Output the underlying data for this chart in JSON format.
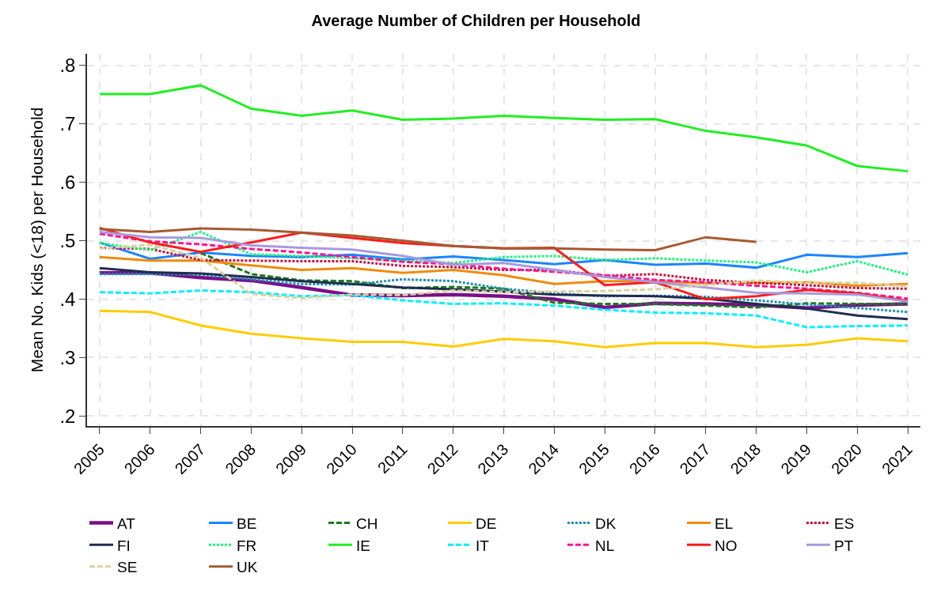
{
  "chart_data": {
    "type": "line",
    "title": "Average Number of Children per Household",
    "ylabel": "Mean No. Kids (<18) per Household",
    "x": [
      2005,
      2006,
      2007,
      2008,
      2009,
      2010,
      2011,
      2012,
      2013,
      2014,
      2015,
      2016,
      2017,
      2018,
      2019,
      2020,
      2021
    ],
    "xlim": [
      2004.75,
      2021.25
    ],
    "xticks": [
      2005,
      2006,
      2007,
      2008,
      2009,
      2010,
      2011,
      2012,
      2013,
      2014,
      2015,
      2016,
      2017,
      2018,
      2019,
      2020,
      2021
    ],
    "ylim": [
      0.183,
      0.82
    ],
    "yticks": [
      {
        "value": 0.2,
        "label": ".2"
      },
      {
        "value": 0.3,
        "label": ".3"
      },
      {
        "value": 0.4,
        "label": ".4"
      },
      {
        "value": 0.5,
        "label": ".5"
      },
      {
        "value": 0.6,
        "label": ".6"
      },
      {
        "value": 0.7,
        "label": ".7"
      },
      {
        "value": 0.8,
        "label": ".8"
      }
    ],
    "grid": true,
    "legend": "bottom",
    "marker": "none",
    "series": [
      {
        "name": "AT",
        "color": "#7a0f8a",
        "line_style": "solid",
        "values": [
          0.445,
          0.445,
          0.437,
          0.432,
          0.42,
          0.407,
          0.406,
          0.408,
          0.405,
          0.4,
          0.386,
          0.393,
          0.392,
          0.39,
          0.385,
          0.39,
          0.392
        ]
      },
      {
        "name": "BE",
        "color": "#1a85ff",
        "line_style": "solid",
        "values": [
          0.497,
          0.469,
          0.48,
          0.474,
          0.472,
          0.476,
          0.468,
          0.473,
          0.467,
          0.46,
          0.467,
          0.459,
          0.461,
          0.454,
          0.476,
          0.472,
          0.479
        ]
      },
      {
        "name": "CH",
        "color": "#1b7a1b",
        "line_style": "dashed",
        "values": [
          null,
          null,
          0.479,
          0.443,
          0.432,
          0.431,
          0.419,
          0.421,
          0.418,
          0.394,
          0.392,
          0.392,
          0.389,
          0.386,
          0.393,
          0.392,
          0.392
        ]
      },
      {
        "name": "DE",
        "color": "#ffcc00",
        "line_style": "solid",
        "values": [
          0.38,
          0.378,
          0.355,
          0.341,
          0.333,
          0.327,
          0.327,
          0.319,
          0.332,
          0.328,
          0.318,
          0.325,
          0.325,
          0.318,
          0.322,
          0.333,
          0.328
        ]
      },
      {
        "name": "DK",
        "color": "#1a8fb5",
        "line_style": "dotted",
        "values": [
          0.443,
          0.443,
          0.442,
          0.434,
          0.426,
          0.425,
          0.434,
          0.431,
          0.418,
          0.41,
          0.405,
          0.406,
          0.404,
          0.398,
          0.391,
          0.385,
          0.378
        ]
      },
      {
        "name": "EL",
        "color": "#ef8b0c",
        "line_style": "solid",
        "values": [
          0.472,
          0.466,
          0.466,
          0.458,
          0.45,
          0.453,
          0.445,
          0.45,
          0.441,
          0.426,
          0.431,
          0.431,
          0.427,
          0.428,
          0.429,
          0.423,
          0.426
        ]
      },
      {
        "name": "ES",
        "color": "#c8113f",
        "line_style": "dotted",
        "values": [
          0.488,
          0.486,
          0.467,
          0.466,
          0.465,
          0.465,
          0.457,
          0.455,
          0.45,
          0.45,
          0.44,
          0.443,
          0.433,
          0.428,
          0.424,
          0.419,
          0.418
        ]
      },
      {
        "name": "FI",
        "color": "#1f2d4f",
        "line_style": "solid",
        "values": [
          0.453,
          0.446,
          0.444,
          0.438,
          0.431,
          0.426,
          0.42,
          0.417,
          0.413,
          0.408,
          0.406,
          0.405,
          0.401,
          0.392,
          0.384,
          0.372,
          0.366
        ]
      },
      {
        "name": "FR",
        "color": "#19f57a",
        "line_style": "dotted",
        "values": [
          0.496,
          0.484,
          0.515,
          0.477,
          0.474,
          0.47,
          0.466,
          0.462,
          0.472,
          0.474,
          0.467,
          0.47,
          0.466,
          0.463,
          0.446,
          0.465,
          0.442
        ]
      },
      {
        "name": "IE",
        "color": "#22ee22",
        "line_style": "solid",
        "values": [
          0.751,
          0.751,
          0.766,
          0.726,
          0.714,
          0.723,
          0.707,
          0.709,
          0.714,
          0.71,
          0.707,
          0.708,
          0.688,
          0.677,
          0.663,
          0.628,
          0.619
        ]
      },
      {
        "name": "IT",
        "color": "#00f0ff",
        "line_style": "dashed",
        "values": [
          0.412,
          0.41,
          0.415,
          0.412,
          0.405,
          0.407,
          0.398,
          0.392,
          0.393,
          0.389,
          0.382,
          0.377,
          0.376,
          0.372,
          0.352,
          0.354,
          0.355
        ]
      },
      {
        "name": "NL",
        "color": "#ff1493",
        "line_style": "dashed",
        "values": [
          0.512,
          0.499,
          0.494,
          0.486,
          0.48,
          0.472,
          0.464,
          0.46,
          0.452,
          0.447,
          0.441,
          0.433,
          0.429,
          0.423,
          0.418,
          0.411,
          0.401
        ]
      },
      {
        "name": "NO",
        "color": "#ff1a1a",
        "line_style": "solid",
        "values": [
          0.522,
          0.497,
          0.481,
          0.497,
          0.514,
          0.505,
          0.496,
          0.491,
          0.487,
          0.488,
          0.424,
          0.429,
          0.4,
          0.405,
          0.416,
          0.41,
          0.397
        ]
      },
      {
        "name": "PT",
        "color": "#a899e0",
        "line_style": "solid",
        "values": [
          0.515,
          0.506,
          0.505,
          0.492,
          0.488,
          0.485,
          0.474,
          0.459,
          0.462,
          0.45,
          0.438,
          0.429,
          0.42,
          0.411,
          0.41,
          0.408,
          0.396
        ]
      },
      {
        "name": "SE",
        "color": "#d8d2a0",
        "line_style": "dashed",
        "values": [
          0.487,
          0.493,
          0.471,
          0.409,
          0.402,
          0.408,
          0.407,
          0.415,
          0.412,
          0.413,
          0.414,
          0.417,
          0.424,
          0.432,
          0.428,
          0.428,
          0.422
        ]
      },
      {
        "name": "UK",
        "color": "#a65a32",
        "line_style": "solid",
        "values": [
          0.52,
          0.515,
          0.521,
          0.519,
          0.514,
          0.509,
          0.5,
          0.491,
          0.487,
          0.487,
          0.485,
          0.484,
          0.506,
          0.498,
          null,
          null,
          null
        ]
      }
    ]
  }
}
